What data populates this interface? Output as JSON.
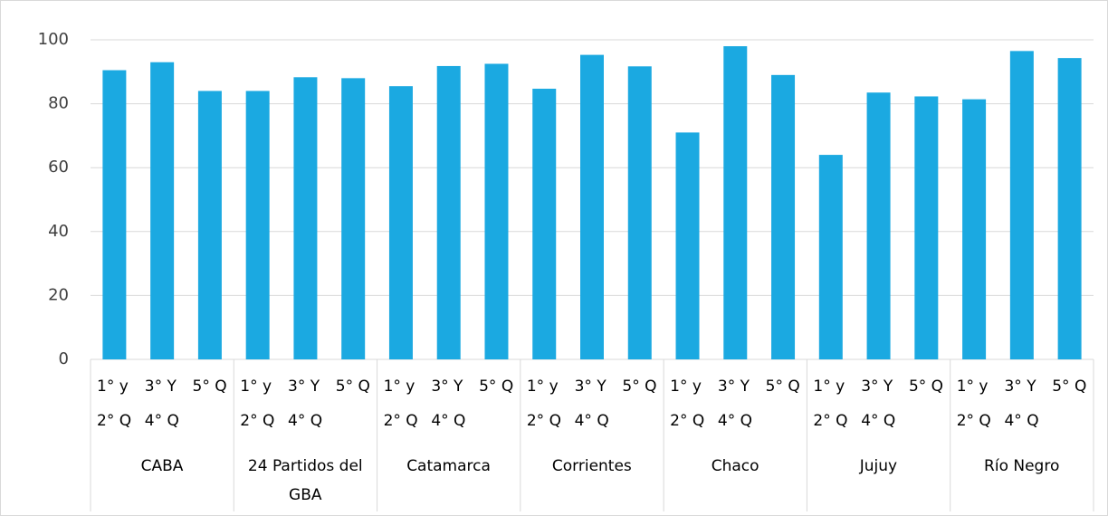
{
  "chart_data": {
    "type": "bar",
    "groups": [
      "CABA",
      "24 Partidos del GBA",
      "Catamarca",
      "Corrientes",
      "Chaco",
      "Jujuy",
      "Río Negro"
    ],
    "categories": [
      "1° y 2° Q",
      "3° Y 4° Q",
      "5° Q",
      "1° y 2° Q",
      "3° Y 4° Q",
      "5° Q",
      "1° y 2° Q",
      "3° Y 4° Q",
      "5° Q",
      "1° y 2° Q",
      "3° Y 4° Q",
      "5° Q",
      "1° y 2° Q",
      "3° Y 4° Q",
      "5° Q",
      "1° y 2° Q",
      "3° Y 4° Q",
      "5° Q",
      "1° y 2° Q",
      "3° Y 4° Q",
      "5° Q"
    ],
    "values": [
      90.5,
      93,
      84,
      84,
      88.3,
      88,
      85.5,
      91.8,
      92.5,
      84.7,
      95.3,
      91.7,
      71,
      98,
      89,
      64,
      83.5,
      82.3,
      81.4,
      96.5,
      94.3
    ],
    "color": "#1ba9e1",
    "ylim": [
      0,
      100
    ],
    "yticks": [
      0,
      20,
      40,
      60,
      80,
      100
    ],
    "grid": true
  }
}
